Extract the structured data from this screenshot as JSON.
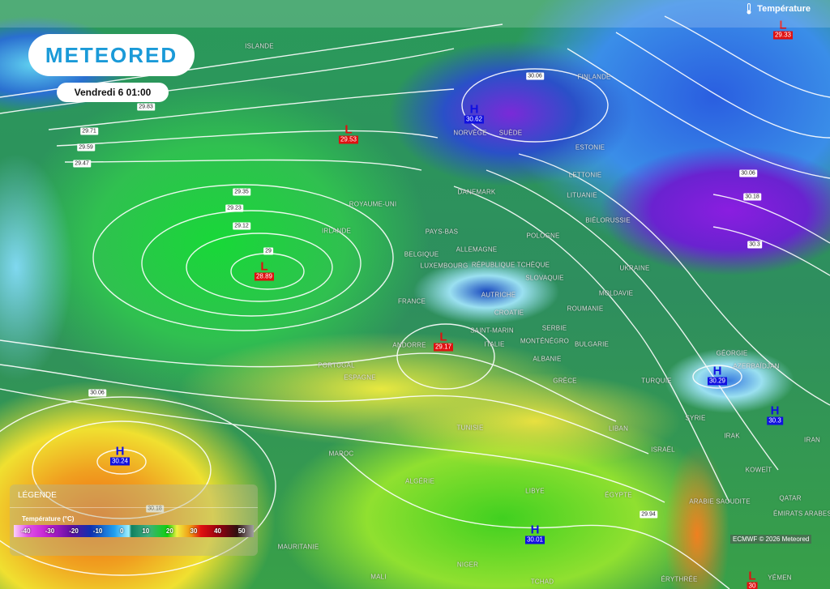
{
  "header": {
    "parameter": "Température",
    "parameter_icon": "thermometer-icon"
  },
  "logo": "METEORED",
  "datetime": "Vendredi 6 01:00",
  "legend": {
    "title": "LÉGENDE",
    "subtitle": "Température (°C)",
    "ticks": [
      "-40",
      "-30",
      "-20",
      "-10",
      "0",
      "10",
      "20",
      "30",
      "40",
      "50"
    ],
    "colors": [
      "#fbd0fb",
      "#e050e8",
      "#6010a0",
      "#1030b0",
      "#20a0f0",
      "#108060",
      "#10d010",
      "#f0f040",
      "#e01010",
      "#900010",
      "#301010",
      "#a0a0a0"
    ]
  },
  "copyright": "ECMWF © 2026 Meteored",
  "countries": [
    "ISLANDE",
    "NORVÈGE",
    "SUÈDE",
    "FINLANDE",
    "ESTONIE",
    "LETTONIE",
    "LITUANIE",
    "BIÉLORUSSIE",
    "DANEMARK",
    "ROYAUME-UNI",
    "IRLANDE",
    "PAYS-BAS",
    "BELGIQUE",
    "LUXEMBOURG",
    "ALLEMAGNE",
    "POLOGNE",
    "RÉPUBLIQUE TCHÈQUE",
    "SLOVAQUIE",
    "AUTRICHE",
    "UKRAINE",
    "MOLDAVIE",
    "ROUMANIE",
    "FRANCE",
    "CROATIE",
    "SERBIE",
    "SAINT-MARIN",
    "ITALIE",
    "MONTÉNÉGRO",
    "BULGARIE",
    "ANDORRE",
    "ALBANIE",
    "PORTUGAL",
    "ESPAGNE",
    "GRÈCE",
    "TURQUIE",
    "GÉORGIE",
    "AZERBAÏDJAN",
    "SYRIE",
    "LIBAN",
    "IRAK",
    "IRAN",
    "ISRAËL",
    "KOWEÏT",
    "TUNISIE",
    "MAROC",
    "ALGÉRIE",
    "LIBYE",
    "ÉGYPTE",
    "ARABIE SAOUDITE",
    "QATAR",
    "ÉMIRATS ARABES",
    "MAURITANIE",
    "MALI",
    "NIGER",
    "TCHAD",
    "ÉRYTHRÉE",
    "YÉMEN"
  ],
  "pressure_systems": [
    {
      "type": "L",
      "value": "29.33"
    },
    {
      "type": "H",
      "value": "30.62"
    },
    {
      "type": "L",
      "value": "29.53"
    },
    {
      "type": "L",
      "value": "28.89"
    },
    {
      "type": "L",
      "value": "29.17"
    },
    {
      "type": "H",
      "value": "30.29"
    },
    {
      "type": "H",
      "value": "30.3"
    },
    {
      "type": "H",
      "value": "30.24"
    },
    {
      "type": "H",
      "value": "30.01"
    },
    {
      "type": "L",
      "value": "30"
    }
  ],
  "isobar_labels": [
    "29.83",
    "29.71",
    "29.59",
    "29.47",
    "29.35",
    "29.23",
    "29.12",
    "29",
    "30.06",
    "30.06",
    "30.18",
    "30.3",
    "30.06",
    "30.18",
    "29.94"
  ],
  "colors": {
    "low": "#e01010",
    "high": "#1010e0",
    "logo": "#1a9ad8"
  }
}
